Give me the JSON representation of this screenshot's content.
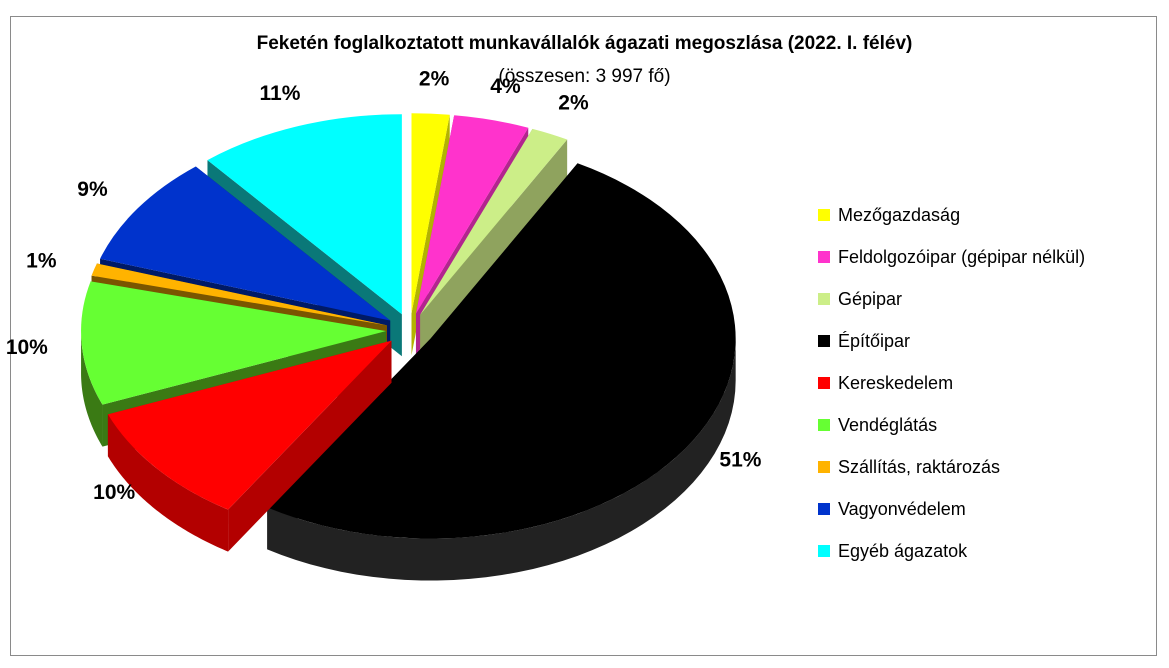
{
  "chart_data": {
    "type": "pie",
    "title": "Feketén foglalkoztatott munkavállalók ágazati megoszlása (2022. I. félév)",
    "subtitle": "(összesen: 3 997 fő)",
    "legend_position": "right",
    "exploded": true,
    "three_d": true,
    "slices": [
      {
        "name": "Mezőgazdaság",
        "value": 2,
        "label": "2%",
        "color": "#ffff00",
        "side": "#b3b300"
      },
      {
        "name": "Feldolgozóipar (gépipar nélkül)",
        "value": 4,
        "label": "4%",
        "color": "#ff33cc",
        "side": "#b3248f"
      },
      {
        "name": "Gépipar",
        "value": 2,
        "label": "2%",
        "color": "#ccee88",
        "side": "#8fa35e"
      },
      {
        "name": "Építőipar",
        "value": 51,
        "label": "51%",
        "color": "#000000",
        "side": "#222222"
      },
      {
        "name": "Kereskedelem",
        "value": 10,
        "label": "10%",
        "color": "#ff0000",
        "side": "#b30000"
      },
      {
        "name": "Vendéglátás",
        "value": 10,
        "label": "10%",
        "color": "#66ff33",
        "side": "#3a7a14"
      },
      {
        "name": "Szállítás, raktározás",
        "value": 1,
        "label": "1%",
        "color": "#ffb300",
        "side": "#7a5500"
      },
      {
        "name": "Vagyonvédelem",
        "value": 9,
        "label": "9%",
        "color": "#0033cc",
        "side": "#001a66"
      },
      {
        "name": "Egyéb ágazatok",
        "value": 11,
        "label": "11%",
        "color": "#00ffff",
        "side": "#0a7878"
      }
    ]
  }
}
